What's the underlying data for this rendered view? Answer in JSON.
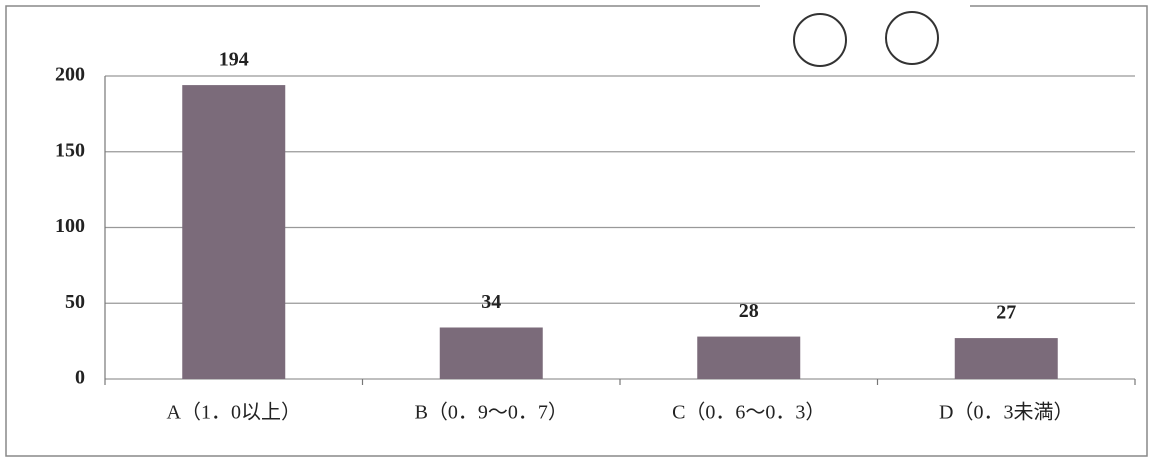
{
  "chart_data": {
    "type": "bar",
    "categories": [
      "A（1．0以上）",
      "B（0．9〜0．7）",
      "C（0．6〜0．3）",
      "D（0．3未満）"
    ],
    "values": [
      194,
      34,
      28,
      27
    ],
    "color": "#7b6b7a",
    "ylim": [
      0,
      200
    ],
    "yticks": [
      0,
      50,
      100,
      150,
      200
    ],
    "grid": true
  }
}
